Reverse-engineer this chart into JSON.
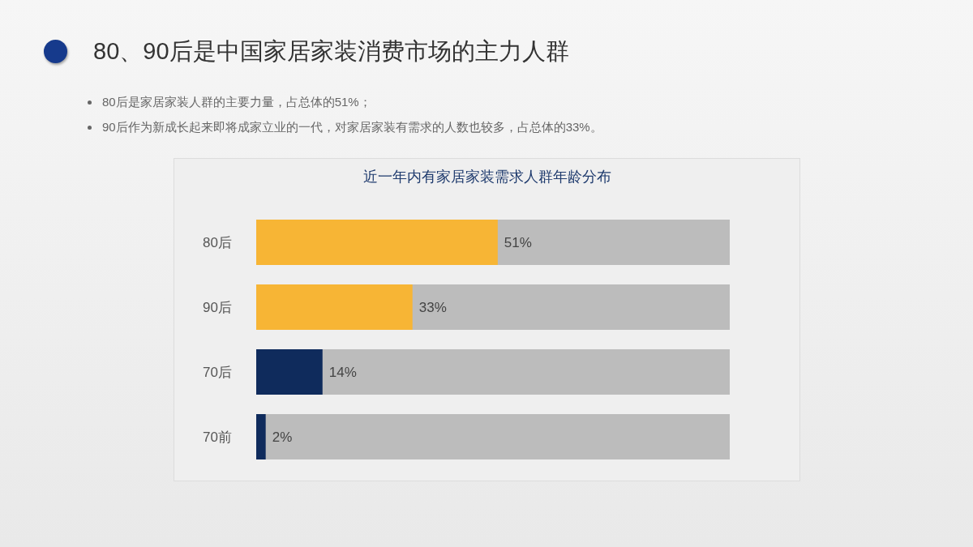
{
  "chart_data": {
    "type": "bar",
    "orientation": "horizontal",
    "title": "80、90后是中国家居家装消费市场的主力人群",
    "subtitle": "近一年内有家居家装需求人群年龄分布",
    "annotations": [
      "80后是家居家装人群的主要力量，占总体的51%；",
      "90后作为新成长起来即将成家立业的一代，对家居家装有需求的人数也较多，占总体的33%。"
    ],
    "categories": [
      "80后",
      "90后",
      "70后",
      "70前"
    ],
    "values": [
      51,
      33,
      14,
      2
    ],
    "colors": [
      "#f7b535",
      "#f7b535",
      "#0f2b5c",
      "#0f2b5c"
    ],
    "value_labels": [
      "51%",
      "33%",
      "14%",
      "2%"
    ],
    "xlim": [
      0,
      100
    ],
    "tick_labels": "y"
  }
}
